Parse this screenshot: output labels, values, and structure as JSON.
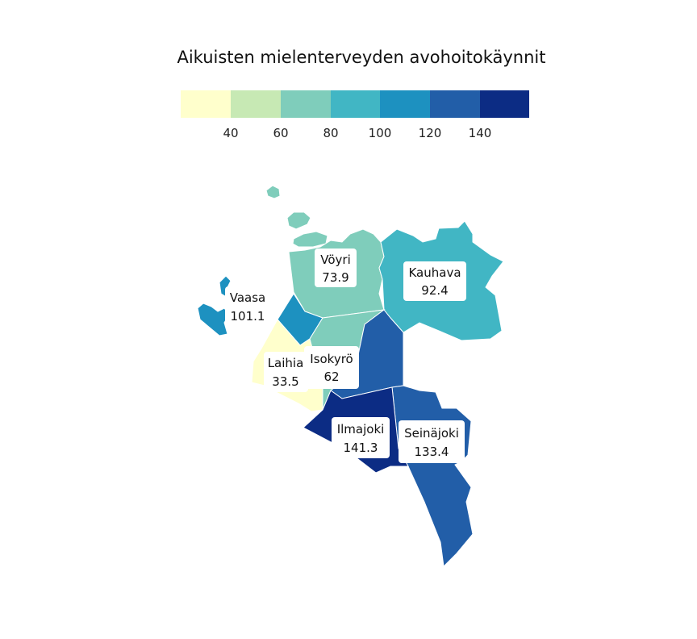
{
  "title": "Aikuisten mielenterveyden avohoitokäynnit",
  "legend": {
    "colors": [
      "#ffffcc",
      "#c7e9b4",
      "#7fcdbb",
      "#41b6c4",
      "#1d91c0",
      "#225ea8",
      "#0c2c84"
    ],
    "ticks": [
      "40",
      "60",
      "80",
      "100",
      "120",
      "140"
    ]
  },
  "regions": [
    {
      "key": "voyri",
      "name": "Vöyri",
      "value": "73.9",
      "color": "#7fcdbb"
    },
    {
      "key": "kauhava",
      "name": "Kauhava",
      "value": "92.4",
      "color": "#41b6c4"
    },
    {
      "key": "vaasa",
      "name": "Vaasa",
      "value": "101.1",
      "color": "#1d91c0"
    },
    {
      "key": "laihia",
      "name": "Laihia",
      "value": "33.5",
      "color": "#ffffcc"
    },
    {
      "key": "isokyro",
      "name": "Isokyrö",
      "value": "62",
      "color": "#7fcdbb"
    },
    {
      "key": "ilmajoki",
      "name": "Ilmajoki",
      "value": "141.3",
      "color": "#0c2c84"
    },
    {
      "key": "seinajoki",
      "name": "Seinäjoki",
      "value": "133.4",
      "color": "#225ea8"
    }
  ]
}
